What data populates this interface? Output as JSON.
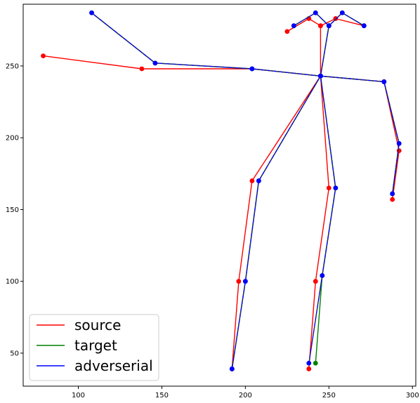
{
  "chart_data": {
    "type": "line",
    "title": "",
    "xlabel": "",
    "ylabel": "",
    "xlim": [
      67,
      302
    ],
    "ylim": [
      27,
      293
    ],
    "xticks": [
      100,
      150,
      200,
      250,
      300
    ],
    "yticks": [
      50,
      100,
      150,
      200,
      250
    ],
    "grid": false,
    "legend_position": "bottom-left",
    "legend": [
      {
        "label": "source",
        "color": "#ff0000",
        "style": "solid"
      },
      {
        "label": "target",
        "color": "#008000",
        "style": "solid"
      },
      {
        "label": "adverserial",
        "color": "#0000ff",
        "style": "solid"
      }
    ],
    "series": [
      {
        "name": "source",
        "color": "#ff0000",
        "dashed": false,
        "segments": [
          [
            [
              79,
              257
            ],
            [
              138,
              248
            ],
            [
              204,
              248
            ],
            [
              245,
              243
            ],
            [
              283,
              239
            ],
            [
              292,
              191
            ],
            [
              288,
              157
            ]
          ],
          [
            [
              245,
              243
            ],
            [
              204,
              170
            ],
            [
              196,
              100
            ],
            [
              192,
              39
            ]
          ],
          [
            [
              245,
              243
            ],
            [
              250,
              165
            ],
            [
              242,
              100
            ],
            [
              238,
              39
            ]
          ],
          [
            [
              245,
              243
            ],
            [
              245,
              278
            ],
            [
              238,
              283
            ],
            [
              225,
              274
            ]
          ],
          [
            [
              245,
              278
            ],
            [
              254,
              283
            ],
            [
              271,
              278
            ]
          ]
        ]
      },
      {
        "name": "target",
        "color": "#008000",
        "dashed": false,
        "segments": [
          [
            [
              108,
              287
            ],
            [
              146,
              252
            ],
            [
              204,
              248
            ],
            [
              245,
              243
            ],
            [
              283,
              239
            ],
            [
              292,
              196
            ],
            [
              288,
              161
            ]
          ],
          [
            [
              245,
              243
            ],
            [
              208,
              170
            ],
            [
              200,
              100
            ],
            [
              192,
              39
            ]
          ],
          [
            [
              245,
              243
            ],
            [
              254,
              165
            ],
            [
              246,
              104
            ],
            [
              242,
              43
            ]
          ],
          [
            [
              245,
              243
            ],
            [
              250,
              278
            ],
            [
              242,
              287
            ],
            [
              229,
              278
            ]
          ],
          [
            [
              250,
              278
            ],
            [
              258,
              287
            ],
            [
              271,
              278
            ]
          ]
        ]
      },
      {
        "name": "adverserial",
        "color": "#0000ff",
        "dashed": true,
        "segments": [
          [
            [
              108,
              287
            ],
            [
              146,
              252
            ],
            [
              204,
              248
            ],
            [
              245,
              243
            ],
            [
              283,
              239
            ],
            [
              292,
              196
            ],
            [
              288,
              161
            ]
          ],
          [
            [
              245,
              243
            ],
            [
              208,
              170
            ],
            [
              200,
              100
            ],
            [
              192,
              39
            ]
          ],
          [
            [
              245,
              243
            ],
            [
              254,
              165
            ],
            [
              246,
              104
            ],
            [
              238,
              43
            ]
          ],
          [
            [
              245,
              243
            ],
            [
              250,
              278
            ],
            [
              242,
              287
            ],
            [
              229,
              278
            ]
          ],
          [
            [
              250,
              278
            ],
            [
              258,
              287
            ],
            [
              271,
              278
            ]
          ]
        ]
      }
    ]
  }
}
